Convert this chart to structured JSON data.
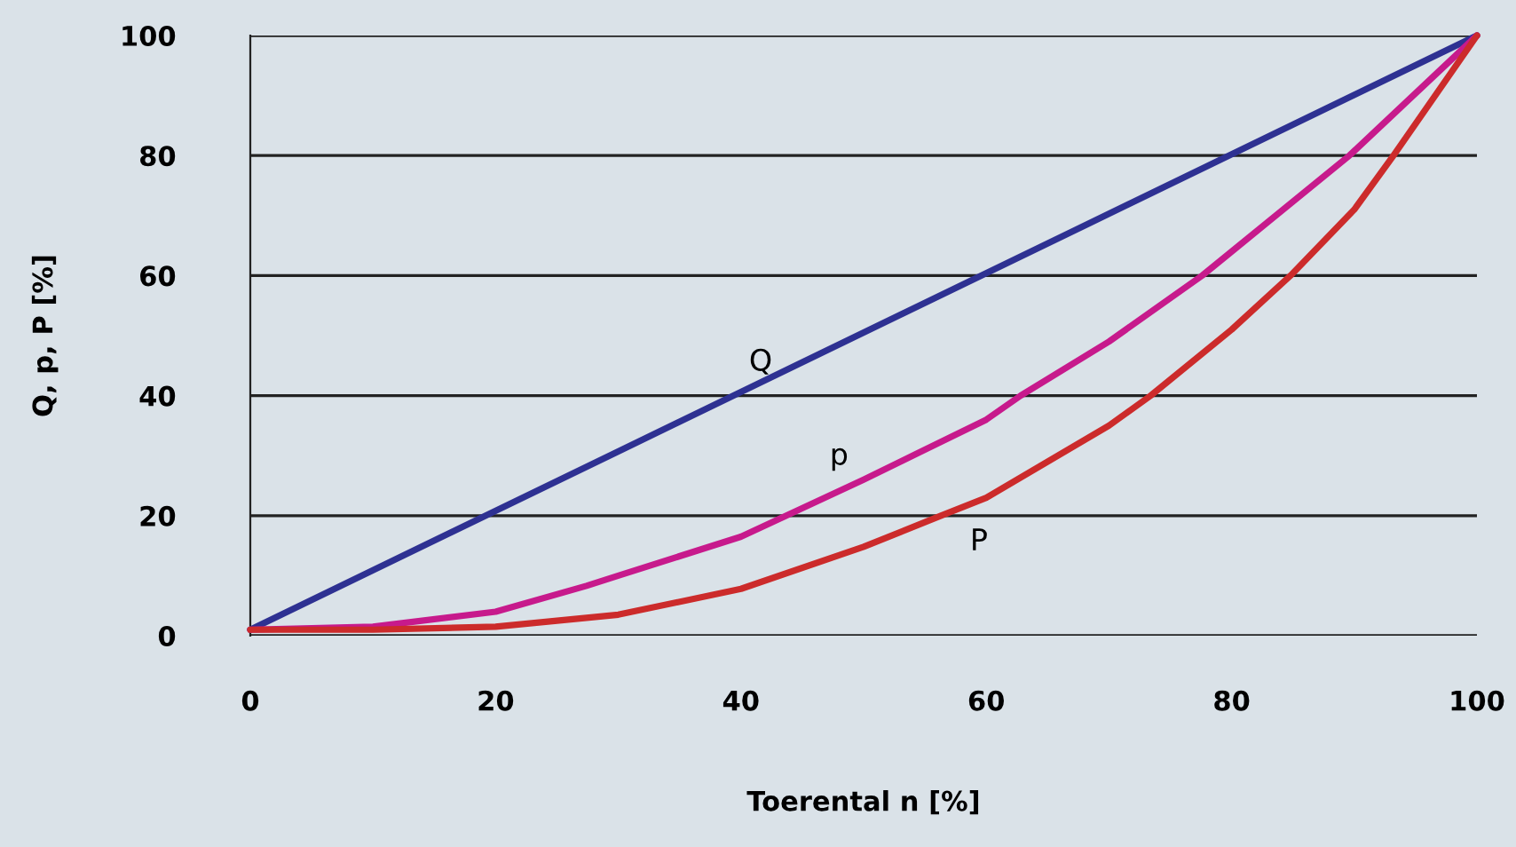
{
  "chart_data": {
    "type": "line",
    "xlabel": "Toerental n [%]",
    "ylabel": "Q, p, P [%]",
    "xlim": [
      0,
      100
    ],
    "ylim": [
      0,
      100
    ],
    "xticks": [
      0,
      20,
      40,
      60,
      80,
      100
    ],
    "yticks": [
      0,
      20,
      40,
      60,
      80,
      100
    ],
    "grid": "y",
    "legend": false,
    "marker": "none",
    "line_style": "solid",
    "series": [
      {
        "name": "Q",
        "color": "#2e3192",
        "x": [
          0,
          100
        ],
        "values": [
          1,
          100
        ]
      },
      {
        "name": "p",
        "color": "#c71a8c",
        "x": [
          0,
          10,
          20,
          27.4,
          30,
          40,
          43.7,
          50,
          60,
          62.8,
          70,
          77.6,
          80,
          89.6,
          100
        ],
        "values": [
          1,
          1.5,
          4,
          8.3,
          10,
          16.5,
          20,
          26,
          36,
          40,
          49,
          60,
          64,
          80,
          100
        ]
      },
      {
        "name": "P",
        "color": "#cc2b2b",
        "x": [
          0,
          10,
          20,
          30,
          40,
          50,
          56.3,
          60,
          70,
          73.4,
          80,
          84.8,
          90,
          93.2,
          100
        ],
        "values": [
          1,
          1,
          1.5,
          3.5,
          7.8,
          14.8,
          20,
          23,
          35,
          40,
          51,
          60,
          71,
          80,
          100
        ]
      }
    ]
  }
}
